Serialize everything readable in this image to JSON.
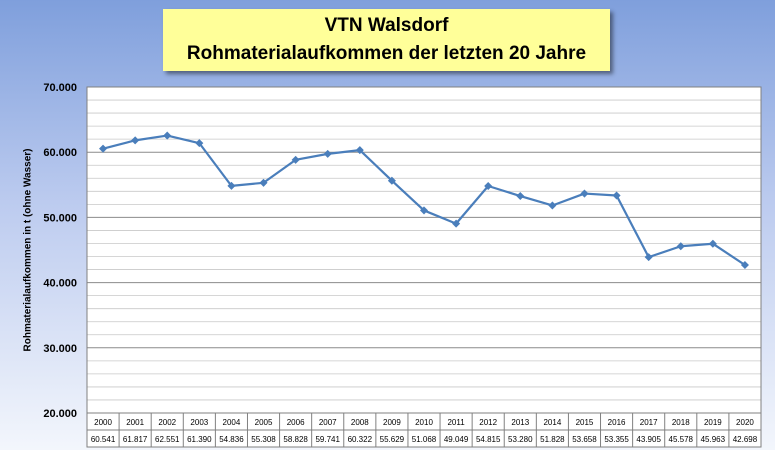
{
  "chart_data": {
    "type": "line",
    "title": "VTN Walsdorf",
    "subtitle": "Rohmaterialaufkommen der letzten 20 Jahre",
    "ylabel": "Rohmaterialaufkommen  in t  (ohne Wasser)",
    "xlabel": "",
    "ylim": [
      20000,
      70000
    ],
    "yticks": [
      20000,
      30000,
      40000,
      50000,
      60000,
      70000
    ],
    "ytick_labels": [
      "20.000",
      "30.000",
      "40.000",
      "50.000",
      "60.000",
      "70.000"
    ],
    "grid": true,
    "legend": "none",
    "line_color": "#4a7ebb",
    "categories": [
      "2000",
      "2001",
      "2002",
      "2003",
      "2004",
      "2005",
      "2006",
      "2007",
      "2008",
      "2009",
      "2010",
      "2011",
      "2012",
      "2013",
      "2014",
      "2015",
      "2016",
      "2017",
      "2018",
      "2019",
      "2020"
    ],
    "values": [
      60541,
      61817,
      62551,
      61390,
      54836,
      55308,
      58828,
      59741,
      60322,
      55629,
      51068,
      49049,
      54815,
      53280,
      51828,
      53658,
      53355,
      43905,
      45578,
      45963,
      42698
    ],
    "value_labels": [
      "60.541",
      "61.817",
      "62.551",
      "61.390",
      "54.836",
      "55.308",
      "58.828",
      "59.741",
      "60.322",
      "55.629",
      "51.068",
      "49.049",
      "54.815",
      "53.280",
      "51.828",
      "53.658",
      "53.355",
      "43.905",
      "45.578",
      "45.963",
      "42.698"
    ]
  }
}
